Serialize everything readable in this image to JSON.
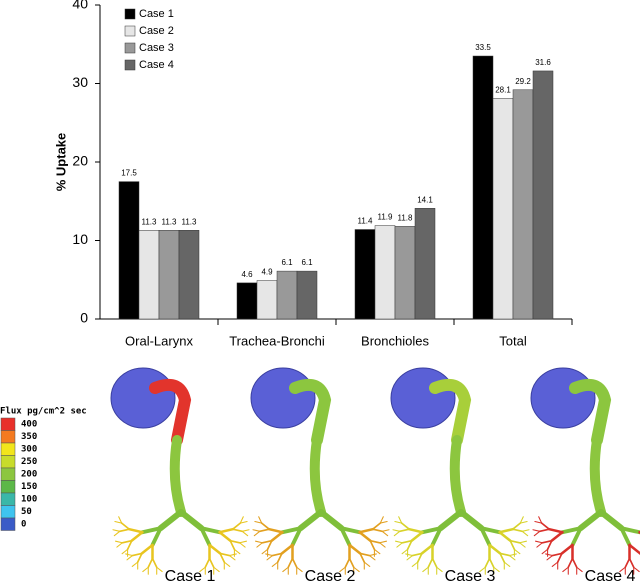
{
  "chart_data": {
    "type": "bar",
    "ylabel": "% Uptake",
    "categories": [
      "Oral-Larynx",
      "Trachea-Bronchi",
      "Bronchioles",
      "Total"
    ],
    "series": [
      {
        "name": "Case 1",
        "color": "#000000",
        "values": [
          17.5,
          4.6,
          11.4,
          33.5
        ]
      },
      {
        "name": "Case 2",
        "color": "#e6e6e6",
        "values": [
          11.3,
          4.9,
          11.9,
          28.1
        ]
      },
      {
        "name": "Case 3",
        "color": "#999999",
        "values": [
          11.3,
          6.1,
          11.8,
          29.2
        ]
      },
      {
        "name": "Case 4",
        "color": "#666666",
        "values": [
          11.3,
          6.1,
          14.1,
          31.6
        ]
      }
    ],
    "ylim": [
      0,
      40
    ],
    "yticks": [
      0,
      10,
      20,
      30,
      40
    ],
    "grid": false,
    "legend": "top-left"
  },
  "figure": {
    "colorbar": {
      "title": "Flux pg/cm^2 sec",
      "labels": [
        400,
        350,
        300,
        250,
        200,
        150,
        100,
        50,
        0
      ],
      "colors": [
        "#e8302a",
        "#f47a20",
        "#f2e51b",
        "#c8dc2b",
        "#8cc63f",
        "#5cb848",
        "#3ab7a8",
        "#3fc4ef",
        "#3a5bc7"
      ]
    },
    "cases": [
      "Case 1",
      "Case 2",
      "Case 3",
      "Case 4"
    ]
  }
}
